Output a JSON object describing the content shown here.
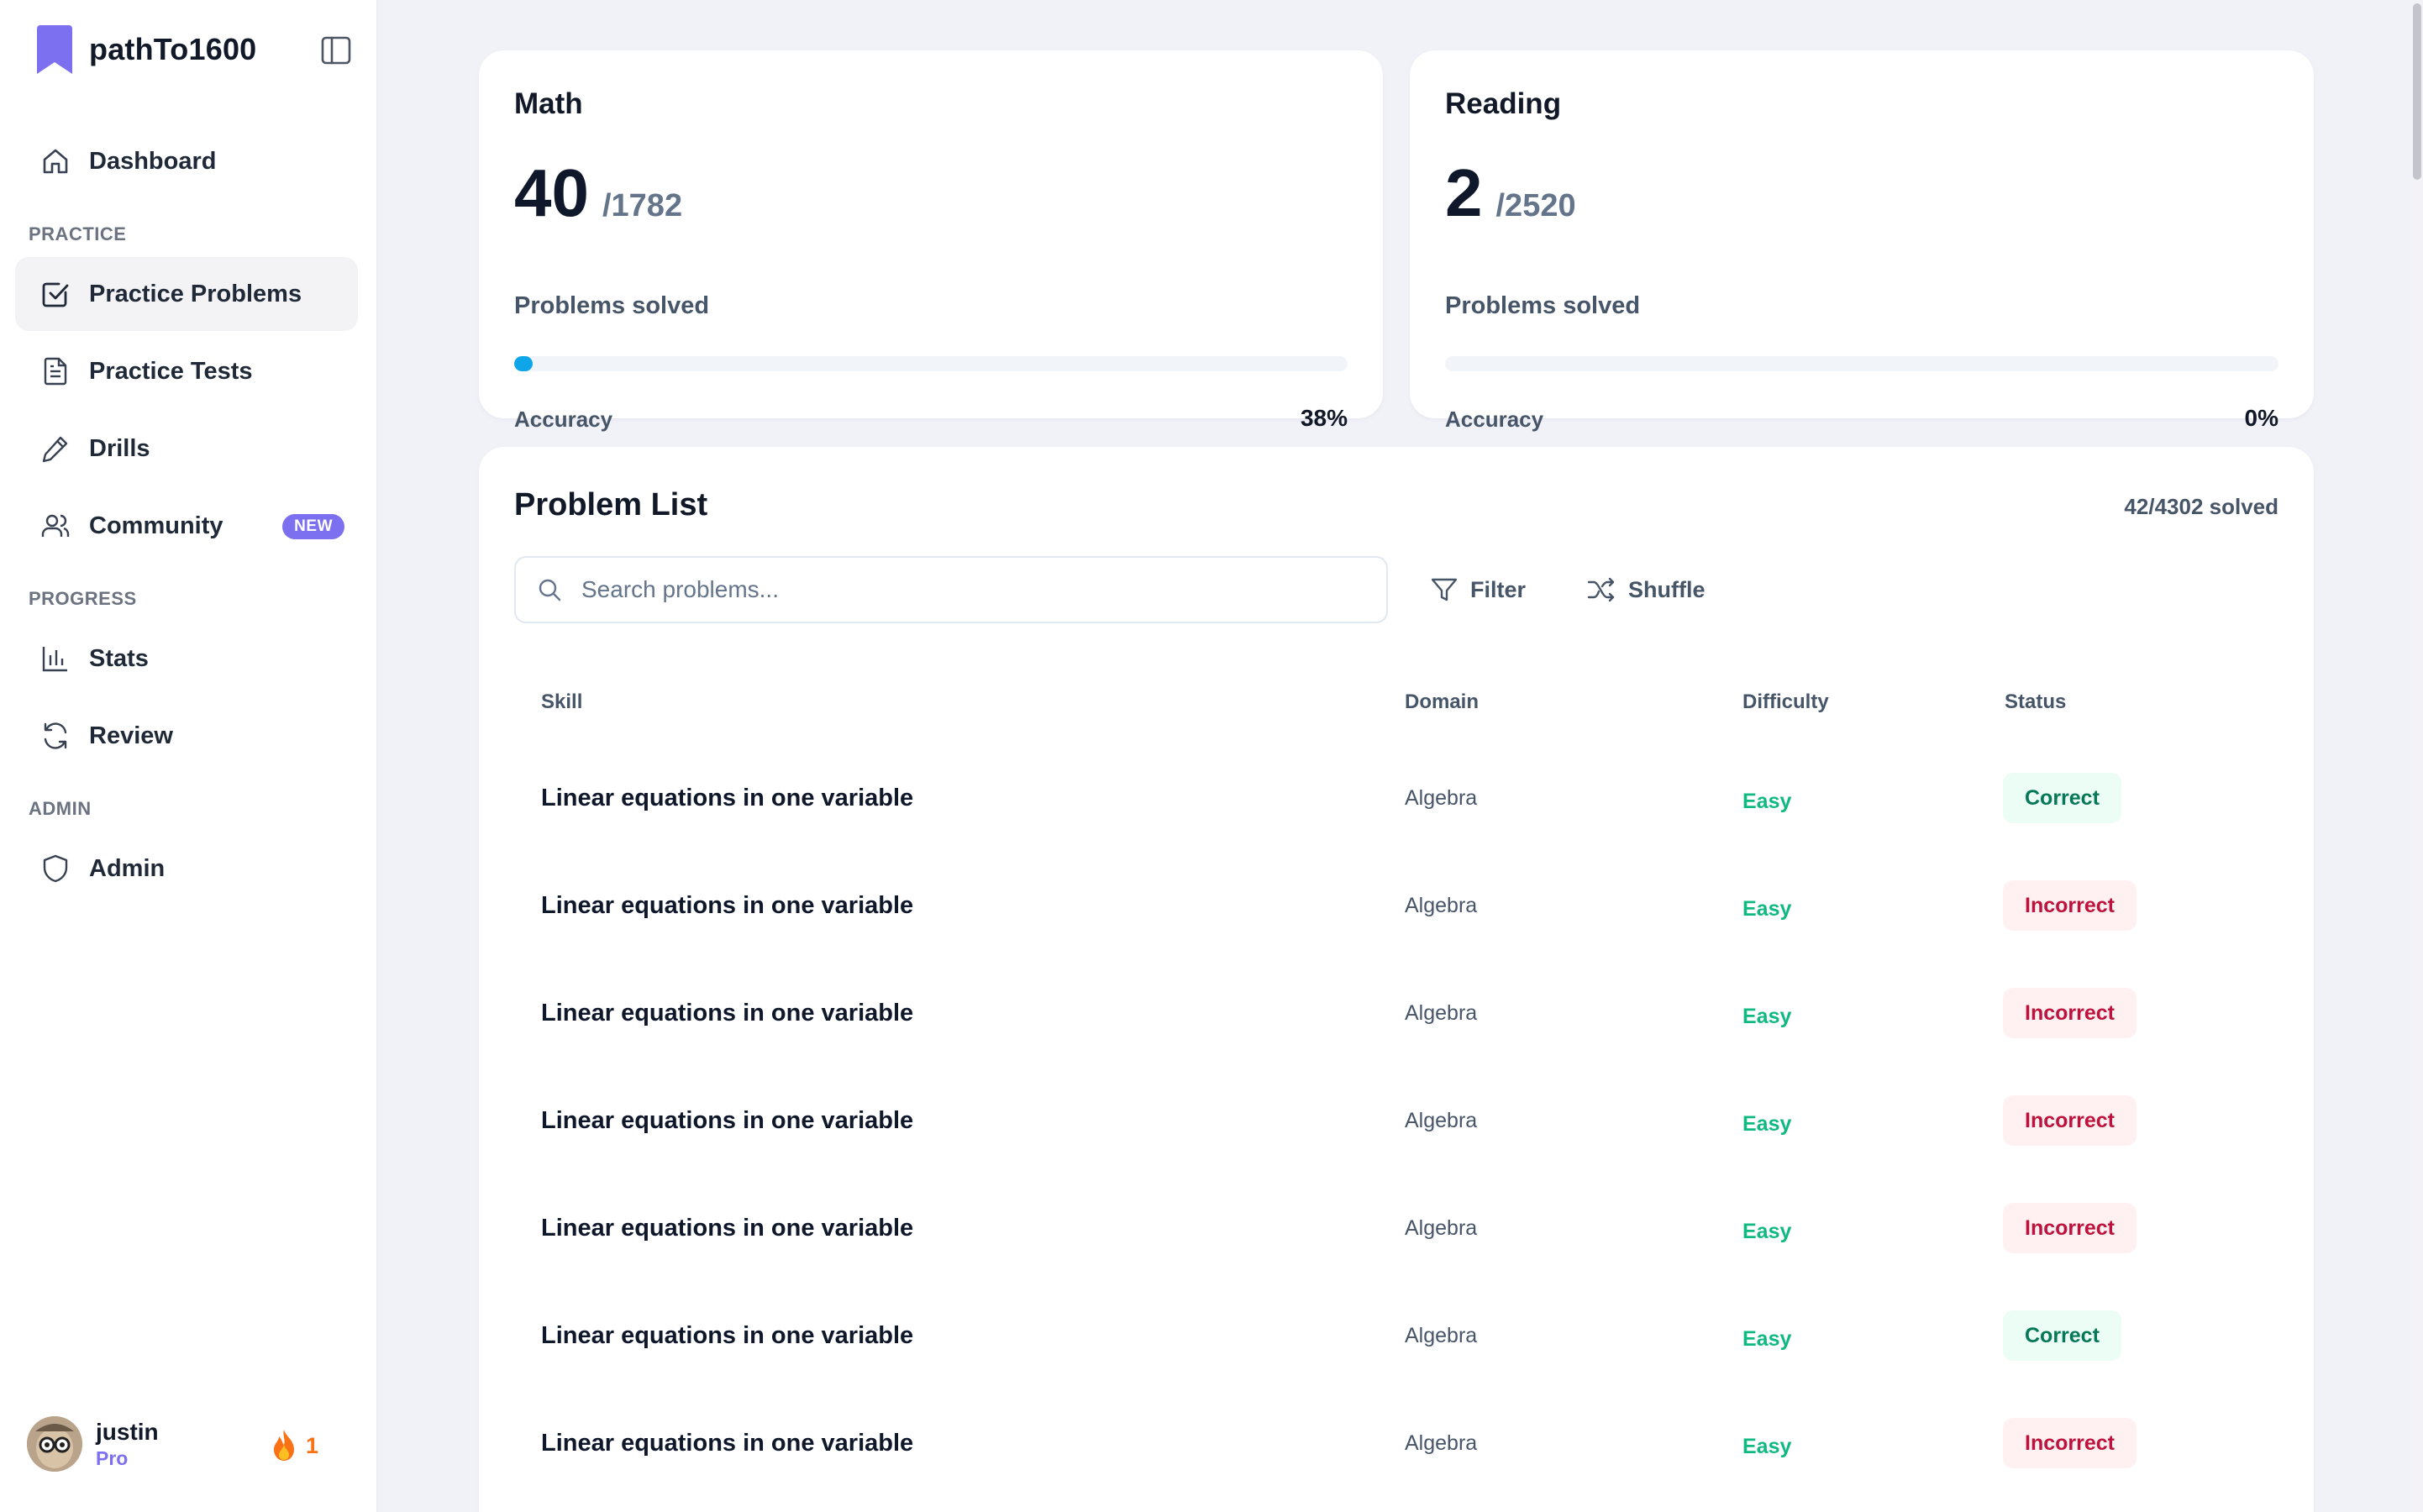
{
  "sidebar": {
    "brand": "pathTo1600",
    "colors": {
      "accent": "#7c6ff0"
    },
    "nav": [
      {
        "id": "dashboard",
        "label": "Dashboard",
        "icon": "home-icon"
      }
    ],
    "sections": {
      "practice": "PRACTICE",
      "progress": "PROGRESS",
      "admin": "ADMIN"
    },
    "practice_items": [
      {
        "label": "Practice Problems",
        "icon": "checkbox-icon",
        "active": true
      },
      {
        "label": "Practice Tests",
        "icon": "document-icon"
      },
      {
        "label": "Drills",
        "icon": "pencil-icon"
      },
      {
        "label": "Community",
        "icon": "users-icon",
        "badge": "NEW"
      }
    ],
    "progress_items": [
      {
        "label": "Stats",
        "icon": "bar-chart-icon"
      },
      {
        "label": "Review",
        "icon": "refresh-icon"
      }
    ],
    "admin_items": [
      {
        "label": "Admin",
        "icon": "shield-icon"
      }
    ],
    "user": {
      "name": "justin",
      "plan": "Pro",
      "streak": "1"
    }
  },
  "stats": {
    "math": {
      "title": "Math",
      "solved": "40",
      "total": "/1782",
      "subtitle": "Problems solved",
      "accuracy_label": "Accuracy",
      "accuracy": "38%",
      "progress_fraction": 0.022
    },
    "reading": {
      "title": "Reading",
      "solved": "2",
      "total": "/2520",
      "subtitle": "Problems solved",
      "accuracy_label": "Accuracy",
      "accuracy": "0%",
      "progress_fraction": 0.0
    }
  },
  "problem_list": {
    "title": "Problem List",
    "solved": "42/4302 solved",
    "search_placeholder": "Search problems...",
    "filter_label": "Filter",
    "shuffle_label": "Shuffle",
    "columns": {
      "skill": "Skill",
      "domain": "Domain",
      "difficulty": "Difficulty",
      "status": "Status"
    },
    "rows": [
      {
        "skill": "Linear equations in one variable",
        "domain": "Algebra",
        "difficulty": "Easy",
        "status": "Correct"
      },
      {
        "skill": "Linear equations in one variable",
        "domain": "Algebra",
        "difficulty": "Easy",
        "status": "Incorrect"
      },
      {
        "skill": "Linear equations in one variable",
        "domain": "Algebra",
        "difficulty": "Easy",
        "status": "Incorrect"
      },
      {
        "skill": "Linear equations in one variable",
        "domain": "Algebra",
        "difficulty": "Easy",
        "status": "Incorrect"
      },
      {
        "skill": "Linear equations in one variable",
        "domain": "Algebra",
        "difficulty": "Easy",
        "status": "Incorrect"
      },
      {
        "skill": "Linear equations in one variable",
        "domain": "Algebra",
        "difficulty": "Easy",
        "status": "Correct"
      },
      {
        "skill": "Linear equations in one variable",
        "domain": "Algebra",
        "difficulty": "Easy",
        "status": "Incorrect"
      }
    ]
  }
}
